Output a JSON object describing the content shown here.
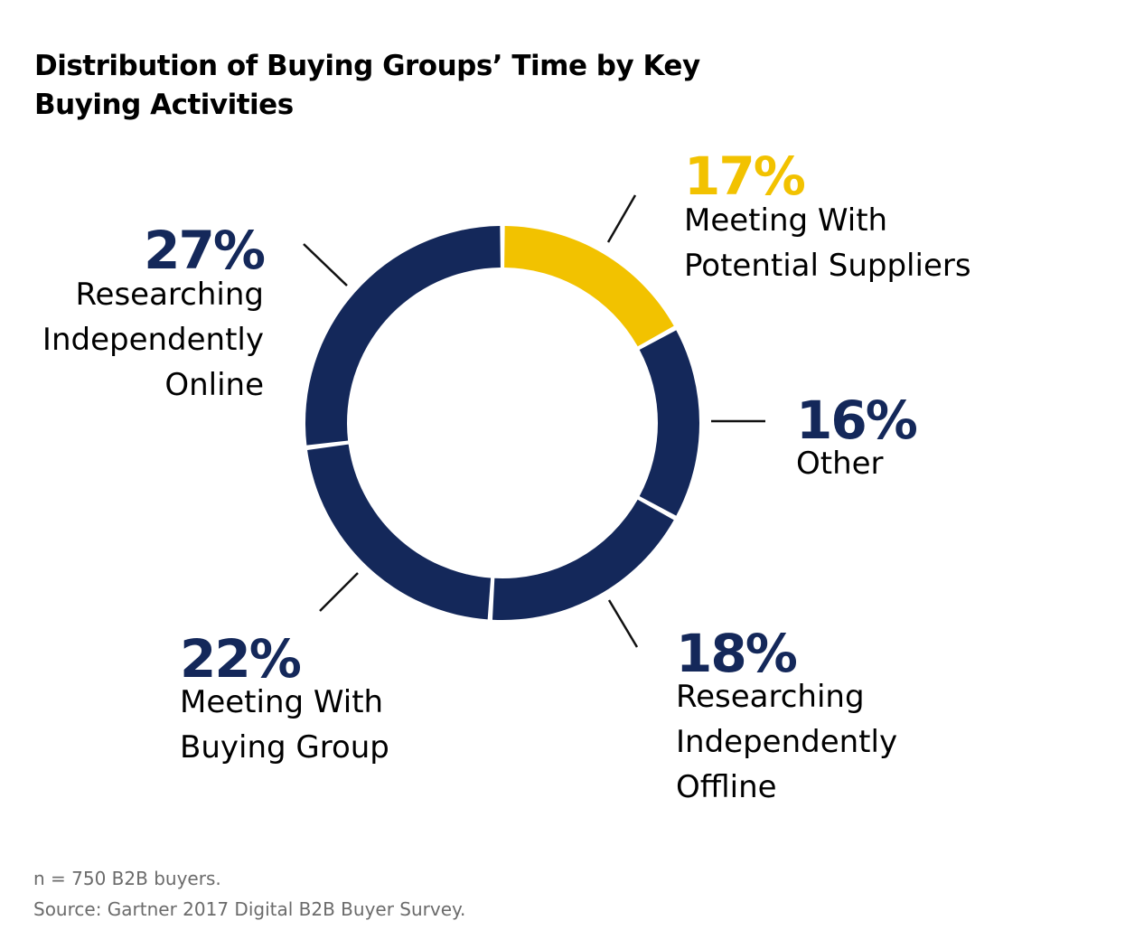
{
  "title": "Distribution of Buying Groups’ Time by Key Buying Activities",
  "colors": {
    "navy": "#14285a",
    "yellow": "#f2c200",
    "leader": "#111111"
  },
  "chart_data": {
    "type": "pie",
    "variant": "donut",
    "title": "Distribution of Buying Groups’ Time by Key Buying Activities",
    "unit": "%",
    "start_angle_deg": 0,
    "direction": "clockwise",
    "series": [
      {
        "slices": [
          {
            "pct_label": "17%",
            "value": 17,
            "label_lines": [
              "Meeting With",
              "Potential Suppliers"
            ],
            "color": "#f2c200",
            "label_anchor": "start"
          },
          {
            "pct_label": "16%",
            "value": 16,
            "label_lines": [
              "Other"
            ],
            "color": "#14285a",
            "label_anchor": "start"
          },
          {
            "pct_label": "18%",
            "value": 18,
            "label_lines": [
              "Researching",
              "Independently",
              "Offline"
            ],
            "color": "#14285a",
            "label_anchor": "start"
          },
          {
            "pct_label": "22%",
            "value": 22,
            "label_lines": [
              "Meeting With",
              "Buying Group"
            ],
            "color": "#14285a",
            "label_anchor": "start"
          },
          {
            "pct_label": "27%",
            "value": 27,
            "label_lines": [
              "Researching",
              "Independently",
              "Online"
            ],
            "color": "#14285a",
            "label_anchor": "end"
          }
        ]
      }
    ]
  },
  "footnotes": {
    "sample": "n = 750 B2B buyers.",
    "source": "Source: Gartner 2017 Digital B2B Buyer Survey."
  }
}
